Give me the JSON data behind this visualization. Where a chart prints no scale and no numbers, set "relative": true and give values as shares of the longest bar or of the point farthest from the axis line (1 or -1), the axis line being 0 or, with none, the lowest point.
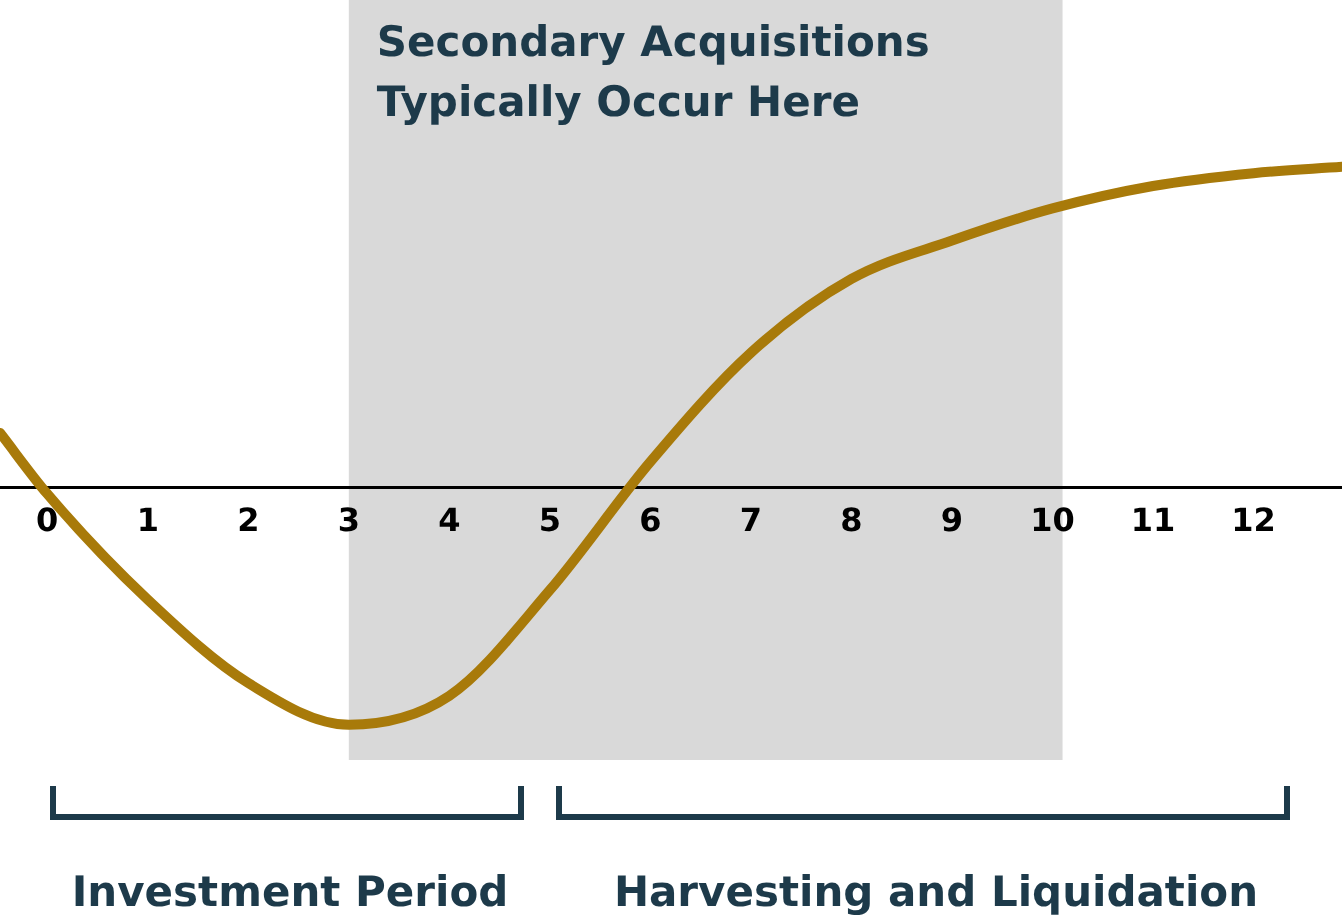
{
  "chart_data": {
    "type": "line",
    "relative": true,
    "x": [
      -0.47,
      0,
      1,
      2,
      3,
      4,
      5,
      6,
      7,
      8,
      9,
      10,
      11,
      12,
      12.88
    ],
    "series": [
      {
        "color": "#a87a0a",
        "values": [
          0.17,
          -0.02,
          -0.35,
          -0.61,
          -0.74,
          -0.65,
          -0.32,
          0.08,
          0.42,
          0.65,
          0.77,
          0.87,
          0.94,
          0.98,
          1
        ]
      }
    ],
    "xlim": [
      -0.47,
      12.88
    ],
    "xticks": [
      0,
      1,
      2,
      3,
      4,
      5,
      6,
      7,
      8,
      9,
      10,
      11,
      12
    ],
    "marker": "none",
    "grid": false,
    "legend": false,
    "bands": [
      {
        "axis": "x",
        "from": 3,
        "to": 10.1,
        "label": "Secondary Acquisitions Typically Occur Here",
        "color": "#d9d9d9"
      }
    ],
    "annotations": [
      "Investment Period",
      "Harvesting and Liquidation"
    ]
  }
}
